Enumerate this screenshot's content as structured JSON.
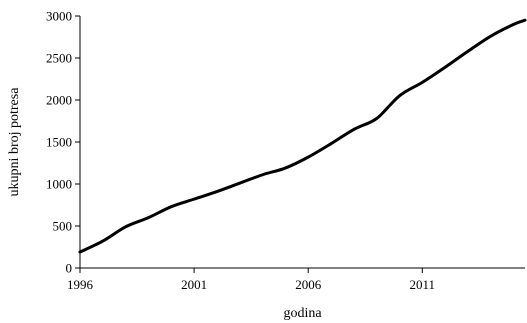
{
  "chart_data": {
    "type": "line",
    "title": "",
    "xlabel": "godina",
    "ylabel": "ukupni broj potresa",
    "xlim": [
      1996,
      2015.5
    ],
    "ylim": [
      0,
      3000
    ],
    "xticks": [
      1996,
      2001,
      2006,
      2011
    ],
    "yticks": [
      0,
      500,
      1000,
      1500,
      2000,
      2500,
      3000
    ],
    "grid": false,
    "legend": "none",
    "series": [
      {
        "color": "#000000",
        "x": [
          1996,
          1997,
          1998,
          1999,
          2000,
          2001,
          2002,
          2003,
          2004,
          2005,
          2006,
          2007,
          2008,
          2009,
          2010,
          2011,
          2012,
          2013,
          2014,
          2015,
          2015.5
        ],
        "y": [
          190,
          320,
          490,
          600,
          730,
          820,
          910,
          1010,
          1110,
          1190,
          1320,
          1480,
          1650,
          1780,
          2050,
          2210,
          2390,
          2580,
          2760,
          2900,
          2950
        ]
      }
    ]
  }
}
